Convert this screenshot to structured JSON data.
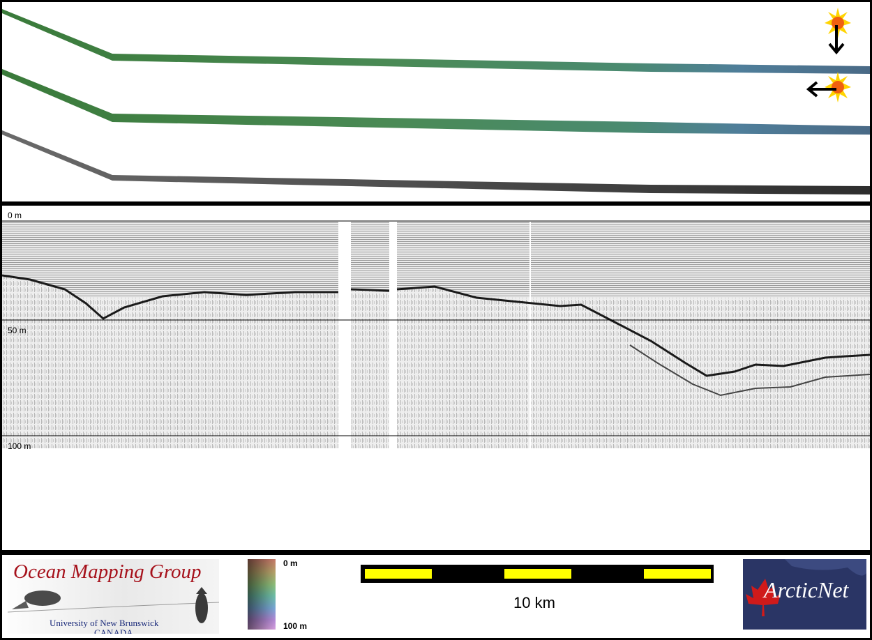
{
  "profile": {
    "depth_labels": [
      "0 m",
      "50 m",
      "100 m"
    ]
  },
  "footer": {
    "omg_logo": {
      "title": "Ocean Mapping Group",
      "university": "University of New Brunswick",
      "country": "CANADA"
    },
    "colorbar": {
      "top_label": "0 m",
      "bottom_label": "100 m"
    },
    "scalebar": {
      "label": "10 km"
    },
    "arcticnet_logo": {
      "text": "ArcticNet"
    }
  },
  "colors": {
    "frame": "#000000",
    "panel": "#ffffff",
    "scalebar_fill": "#ffff00",
    "omg_title": "#a6111b",
    "omg_subtitle": "#1a2a7a",
    "arcticnet_bg": "#2a3565"
  },
  "icons": [
    "sun-down-arrow-icon",
    "sun-left-arrow-icon",
    "maple-leaf-icon"
  ]
}
